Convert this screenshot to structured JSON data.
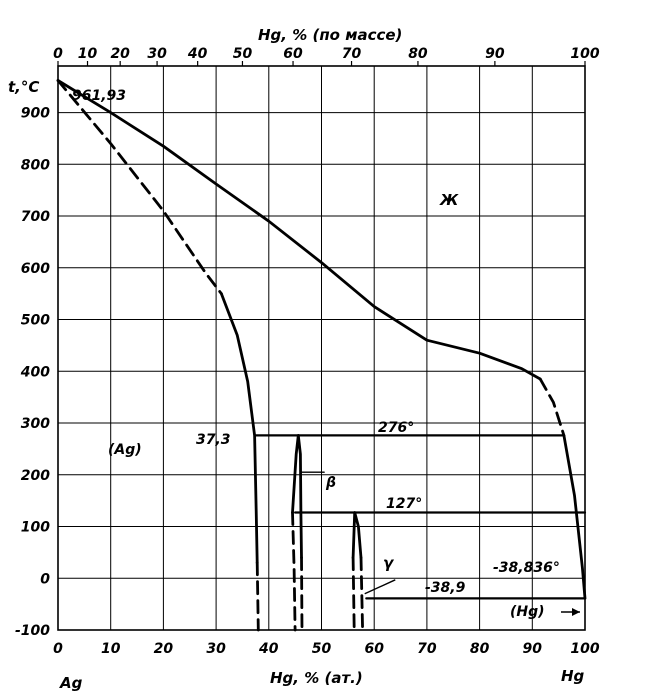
{
  "chart_data": {
    "type": "phase-diagram",
    "top_axis": {
      "label": "Hg, % (по массе)",
      "ticks": [
        "0",
        "10",
        "20",
        "30",
        "40",
        "50",
        "60",
        "70",
        "80",
        "90",
        "100"
      ],
      "tick_at_atomic": [
        0,
        5.6,
        11.8,
        18.8,
        26.5,
        35.0,
        44.6,
        55.7,
        68.3,
        82.9,
        100
      ]
    },
    "bottom_axis": {
      "label": "Hg, % (ат.)",
      "ticks": [
        "0",
        "10",
        "20",
        "30",
        "40",
        "50",
        "60",
        "70",
        "80",
        "90",
        "100"
      ],
      "range": [
        0,
        100
      ],
      "left_end": "Ag",
      "right_end": "Hg"
    },
    "y_axis": {
      "label": "t,°C",
      "ticks": [
        "-100",
        "0",
        "100",
        "200",
        "300",
        "400",
        "500",
        "600",
        "700",
        "800",
        "900"
      ],
      "range": [
        -100,
        990
      ]
    },
    "grid": true,
    "labels": {
      "melting_ag": "961,93",
      "liquid": "Ж",
      "ag_phase": "(Ag)",
      "peritectic_comp": "37,3",
      "t_276": "276°",
      "beta": "β",
      "t_127": "127°",
      "gamma": "γ",
      "t_hg_melt": "-38,836°",
      "t_eutectic": "-38,9",
      "hg_phase": "(Hg)"
    },
    "liquidus": [
      [
        0,
        961.93
      ],
      [
        10,
        900
      ],
      [
        20,
        835
      ],
      [
        30,
        762
      ],
      [
        40,
        690
      ],
      [
        50,
        610
      ],
      [
        60,
        525
      ],
      [
        70,
        460
      ],
      [
        80,
        435
      ],
      [
        88,
        405
      ],
      [
        91.5,
        385
      ]
    ],
    "liquidus_dashed": [
      [
        91.5,
        385
      ],
      [
        94,
        340
      ],
      [
        96,
        276
      ]
    ],
    "liquidus_end": [
      [
        96,
        276
      ],
      [
        98,
        160
      ],
      [
        99.5,
        20
      ],
      [
        100,
        -38.836
      ]
    ],
    "solvus_dashed": [
      [
        0,
        961.93
      ],
      [
        10,
        840
      ],
      [
        20,
        710
      ],
      [
        28,
        590
      ],
      [
        31,
        550
      ]
    ],
    "solvus": [
      [
        31,
        550
      ],
      [
        34,
        470
      ],
      [
        36,
        380
      ],
      [
        37,
        300
      ],
      [
        37.3,
        276
      ],
      [
        37.6,
        130
      ],
      [
        37.8,
        30
      ]
    ],
    "solvus_low_dashed": [
      [
        37.8,
        30
      ],
      [
        38,
        -100
      ]
    ],
    "isotherm_276": [
      [
        37.3,
        276
      ],
      [
        96,
        276
      ]
    ],
    "isotherm_127": [
      [
        45,
        127
      ],
      [
        100,
        127
      ]
    ],
    "isotherm_eutectic": [
      [
        58.5,
        -38.9
      ],
      [
        100,
        -38.9
      ]
    ],
    "beta_phase": [
      [
        44.5,
        127
      ],
      [
        45.2,
        240
      ],
      [
        45.6,
        276
      ],
      [
        46.0,
        240
      ],
      [
        46.1,
        127
      ],
      [
        46.2,
        40
      ]
    ],
    "beta_low_dashed": [
      [
        44.5,
        127
      ],
      [
        44.8,
        20
      ],
      [
        45,
        -100
      ],
      [
        46.2,
        40
      ],
      [
        46.3,
        -100
      ]
    ],
    "gamma_phase": [
      [
        56,
        40
      ],
      [
        56.3,
        127
      ],
      [
        57,
        100
      ],
      [
        57.5,
        40
      ]
    ],
    "gamma_low_dashed": [
      [
        56,
        40
      ],
      [
        56.2,
        -100
      ],
      [
        57.5,
        40
      ],
      [
        57.8,
        -100
      ]
    ]
  }
}
